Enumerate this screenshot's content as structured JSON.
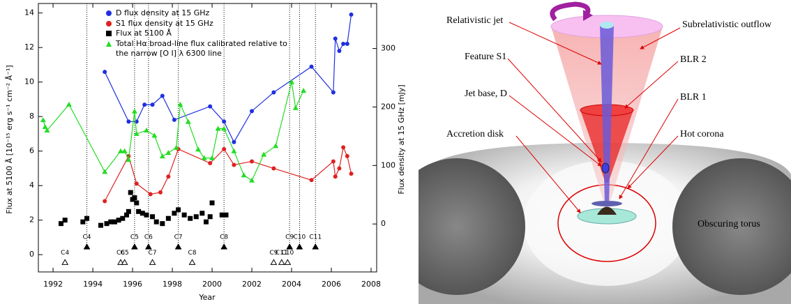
{
  "chart_data": {
    "type": "line",
    "xlabel": "Year",
    "ylabel": "Flux at 5100 Å [10⁻¹⁵ erg s⁻¹ cm⁻² Å⁻¹]",
    "y2label": "Flux density at 15 GHz [mJy]",
    "xlim": [
      1991.26,
      2008.28
    ],
    "xticks": [
      1992,
      1994,
      1996,
      1998,
      2000,
      2002,
      2004,
      2006,
      2008
    ],
    "ylim": [
      -1,
      14.55
    ],
    "yticks": [
      0,
      2,
      4,
      6,
      8,
      10,
      12,
      14
    ],
    "y2lim": [
      -82,
      377
    ],
    "y2ticks": [
      0,
      100,
      200,
      300
    ],
    "series": [
      {
        "name": "D flux density at 15 GHz",
        "color": "#1f2fe0",
        "marker": "circle",
        "axis": "y2",
        "x": [
          1994.6,
          1995.8,
          1996.2,
          1996.6,
          1997.0,
          1997.5,
          1998.1,
          1999.9,
          2000.6,
          2001.1,
          2002.0,
          2003.1,
          2005.0,
          2006.1,
          2006.2,
          2006.4,
          2006.6,
          2006.8,
          2007.0
        ],
        "values": [
          260,
          175,
          175,
          204,
          204,
          219,
          178,
          201,
          175,
          140,
          193,
          225,
          269,
          225,
          317,
          296,
          308,
          308,
          358
        ]
      },
      {
        "name": "S1 flux density at 15 GHz",
        "color": "#e02020",
        "marker": "circle",
        "axis": "y2",
        "x": [
          1994.6,
          1995.8,
          1996.2,
          1996.9,
          1997.4,
          1997.8,
          1998.3,
          1999.9,
          2000.6,
          2001.1,
          2002.0,
          2003.1,
          2005.0,
          2006.1,
          2006.2,
          2006.4,
          2006.6,
          2006.8,
          2007.0
        ],
        "values": [
          39,
          116,
          69,
          51,
          54,
          81,
          128,
          104,
          128,
          101,
          107,
          95,
          75,
          107,
          81,
          95,
          131,
          116,
          86
        ]
      },
      {
        "name": "Flux at 5100 Å",
        "color": "#000000",
        "marker": "square",
        "axis": "y",
        "line": false,
        "x": [
          1992.4,
          1992.6,
          1993.5,
          1993.7,
          1994.4,
          1994.7,
          1994.9,
          1995.1,
          1995.3,
          1995.5,
          1995.7,
          1995.8,
          1995.9,
          1996.0,
          1996.1,
          1996.2,
          1996.3,
          1996.5,
          1996.7,
          1997.0,
          1997.2,
          1997.5,
          1997.8,
          1998.1,
          1998.3,
          1998.6,
          1998.9,
          1999.2,
          1999.5,
          1999.7,
          1999.9,
          2000.0,
          2000.5,
          2000.7
        ],
        "values": [
          1.8,
          2.0,
          1.9,
          2.1,
          1.7,
          1.8,
          1.9,
          1.9,
          2.0,
          2.1,
          2.3,
          2.5,
          3.6,
          3.2,
          3.3,
          3.0,
          2.5,
          2.4,
          2.3,
          2.2,
          1.9,
          1.8,
          2.1,
          2.4,
          2.6,
          2.3,
          2.1,
          2.2,
          2.4,
          1.9,
          2.2,
          3.0,
          2.3,
          2.3
        ]
      },
      {
        "name": "Total Hα broad-line flux calibrated relative to the narrow [O I] λ 6300 line",
        "color": "#22dd22",
        "marker": "triangle",
        "axis": "y",
        "x": [
          1991.5,
          1991.6,
          1991.7,
          1992.8,
          1994.6,
          1995.4,
          1995.6,
          1995.8,
          1996.1,
          1996.2,
          1996.7,
          1997.1,
          1997.5,
          1997.8,
          1998.2,
          1998.4,
          1998.8,
          1999.3,
          1999.6,
          2000.0,
          2000.3,
          2000.6,
          2001.1,
          2001.6,
          2002.0,
          2002.6,
          2003.2,
          2004.0,
          2004.2,
          2004.6
        ],
        "values": [
          7.8,
          7.4,
          7.2,
          8.7,
          4.8,
          6.0,
          6.0,
          5.5,
          8.3,
          7.0,
          7.2,
          6.9,
          5.7,
          5.9,
          6.2,
          8.7,
          7.7,
          6.1,
          5.6,
          5.6,
          7.3,
          7.3,
          6.0,
          4.6,
          4.3,
          5.8,
          6.3,
          10.0,
          8.5,
          9.5
        ]
      }
    ],
    "ejections": [
      {
        "label": "C4",
        "x": 1993.7,
        "y": 0.45,
        "filled": true
      },
      {
        "label": "C5",
        "x": 1996.1,
        "y": 0.45,
        "filled": true
      },
      {
        "label": "C6",
        "x": 1996.8,
        "y": 0.45,
        "filled": true
      },
      {
        "label": "C7",
        "x": 1998.3,
        "y": 0.45,
        "filled": true
      },
      {
        "label": "C8",
        "x": 2000.6,
        "y": 0.45,
        "filled": true
      },
      {
        "label": "C9",
        "x": 2003.9,
        "y": 0.45,
        "filled": true
      },
      {
        "label": "C10",
        "x": 2004.4,
        "y": 0.45,
        "filled": true
      },
      {
        "label": "C11",
        "x": 2005.2,
        "y": 0.45,
        "filled": true
      },
      {
        "label": "C4",
        "x": 1992.6,
        "y": -0.45,
        "filled": false
      },
      {
        "label": "C6",
        "x": 1995.4,
        "y": -0.45,
        "filled": false
      },
      {
        "label": "C5",
        "x": 1995.6,
        "y": -0.45,
        "filled": false
      },
      {
        "label": "C7",
        "x": 1997.0,
        "y": -0.45,
        "filled": false
      },
      {
        "label": "C8",
        "x": 1999.0,
        "y": -0.45,
        "filled": false
      },
      {
        "label": "C9",
        "x": 2003.1,
        "y": -0.45,
        "filled": false
      },
      {
        "label": "C11",
        "x": 2003.5,
        "y": -0.45,
        "filled": false
      },
      {
        "label": "C10",
        "x": 2003.8,
        "y": -0.45,
        "filled": false
      }
    ]
  },
  "diagram": {
    "labels": [
      "Relativistic jet",
      "Subrelativistic outflow",
      "Feature S1",
      "BLR 2",
      "Jet base, D",
      "BLR 1",
      "Accretion disk",
      "Hot corona",
      "Obscuring torus"
    ]
  }
}
